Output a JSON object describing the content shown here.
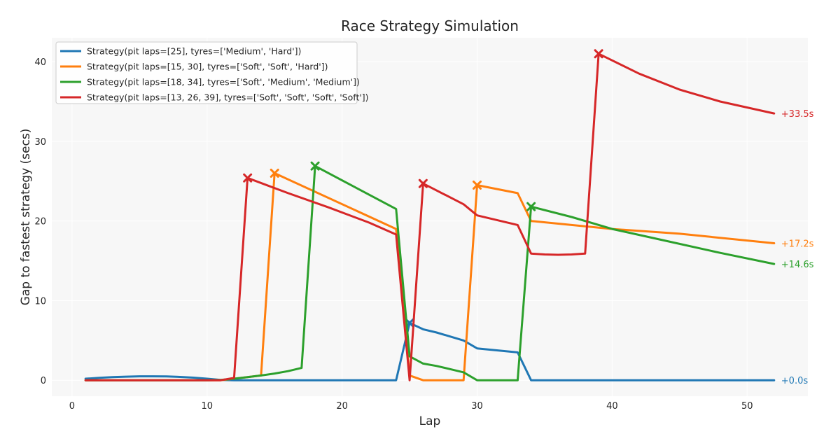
{
  "chart_data": {
    "type": "line",
    "title": "Race Strategy Simulation",
    "xlabel": "Lap",
    "ylabel": "Gap to fastest strategy (secs)",
    "xlim": [
      -1.5,
      54.5
    ],
    "ylim": [
      -2,
      43
    ],
    "xticks": [
      0,
      10,
      20,
      30,
      40,
      50
    ],
    "yticks": [
      0,
      10,
      20,
      30,
      40
    ],
    "grid": true,
    "legend": "top-left",
    "series": [
      {
        "name": "Strategy(pit laps=[25], tyres=['Medium', 'Hard'])",
        "color": "#1f77b4",
        "end_label": "+0.0s",
        "pit_laps": [
          25
        ],
        "points": [
          [
            1,
            0.2
          ],
          [
            2,
            0.3
          ],
          [
            3,
            0.4
          ],
          [
            4,
            0.45
          ],
          [
            5,
            0.5
          ],
          [
            6,
            0.5
          ],
          [
            7,
            0.48
          ],
          [
            8,
            0.42
          ],
          [
            9,
            0.33
          ],
          [
            10,
            0.2
          ],
          [
            11,
            0.05
          ],
          [
            12,
            0
          ],
          [
            24,
            0
          ],
          [
            25,
            7.2
          ],
          [
            26,
            6.4
          ],
          [
            27,
            6.0
          ],
          [
            28,
            5.5
          ],
          [
            29,
            5.0
          ],
          [
            30,
            4.0
          ],
          [
            33,
            3.5
          ],
          [
            34,
            0
          ],
          [
            52,
            0
          ]
        ]
      },
      {
        "name": "Strategy(pit laps=[15, 30], tyres=['Soft', 'Soft', 'Hard'])",
        "color": "#ff7f0e",
        "end_label": "+17.2s",
        "pit_laps": [
          15,
          30
        ],
        "points": [
          [
            1,
            0
          ],
          [
            10,
            0
          ],
          [
            11,
            0
          ],
          [
            12,
            0.2
          ],
          [
            13,
            0.4
          ],
          [
            14,
            0.6
          ],
          [
            15,
            26.0
          ],
          [
            24,
            19.0
          ],
          [
            25,
            0.6
          ],
          [
            26,
            0
          ],
          [
            29,
            0
          ],
          [
            30,
            24.5
          ],
          [
            33,
            23.5
          ],
          [
            34,
            20.0
          ],
          [
            40,
            19.0
          ],
          [
            45,
            18.4
          ],
          [
            52,
            17.2
          ]
        ]
      },
      {
        "name": "Strategy(pit laps=[18, 34], tyres=['Soft', 'Medium', 'Medium'])",
        "color": "#2ca02c",
        "end_label": "+14.6s",
        "pit_laps": [
          18,
          34
        ],
        "points": [
          [
            1,
            0
          ],
          [
            10,
            0
          ],
          [
            11,
            0.05
          ],
          [
            12,
            0.2
          ],
          [
            13,
            0.4
          ],
          [
            14,
            0.6
          ],
          [
            15,
            0.85
          ],
          [
            16,
            1.15
          ],
          [
            17,
            1.55
          ],
          [
            18,
            26.9
          ],
          [
            24,
            21.5
          ],
          [
            25,
            3.0
          ],
          [
            26,
            2.1
          ],
          [
            27,
            1.8
          ],
          [
            28,
            1.4
          ],
          [
            29,
            1.0
          ],
          [
            30,
            0
          ],
          [
            33,
            0
          ],
          [
            34,
            21.8
          ],
          [
            37,
            20.5
          ],
          [
            40,
            19.0
          ],
          [
            44,
            17.5
          ],
          [
            48,
            16.0
          ],
          [
            52,
            14.6
          ]
        ]
      },
      {
        "name": "Strategy(pit laps=[13, 26, 39], tyres=['Soft', 'Soft', 'Soft', 'Soft'])",
        "color": "#d62728",
        "end_label": "+33.5s",
        "pit_laps": [
          13,
          26,
          39
        ],
        "points": [
          [
            1,
            0
          ],
          [
            10,
            0
          ],
          [
            11,
            0
          ],
          [
            12,
            0.3
          ],
          [
            13,
            25.4
          ],
          [
            16,
            23.5
          ],
          [
            19,
            21.7
          ],
          [
            22,
            19.8
          ],
          [
            24,
            18.3
          ],
          [
            25,
            0
          ],
          [
            26,
            24.7
          ],
          [
            29,
            22.1
          ],
          [
            30,
            20.7
          ],
          [
            33,
            19.5
          ],
          [
            34,
            15.9
          ],
          [
            35,
            15.8
          ],
          [
            36,
            15.75
          ],
          [
            37,
            15.8
          ],
          [
            38,
            15.9
          ],
          [
            39,
            41.0
          ],
          [
            42,
            38.5
          ],
          [
            45,
            36.5
          ],
          [
            48,
            35.0
          ],
          [
            52,
            33.5
          ]
        ]
      }
    ]
  }
}
